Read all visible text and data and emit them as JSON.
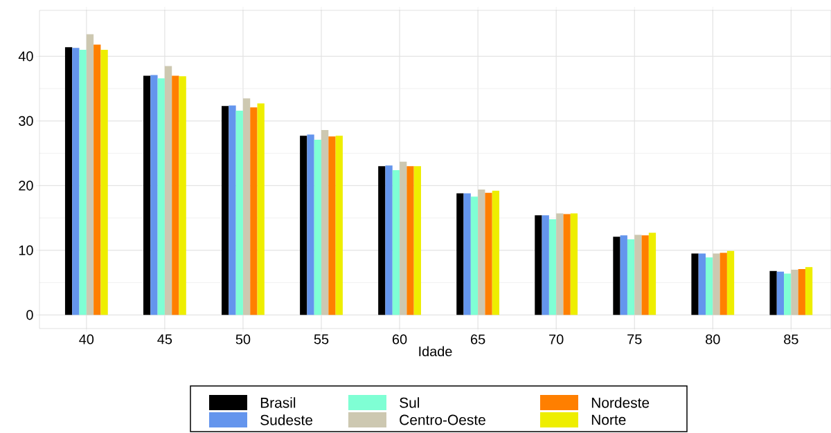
{
  "chart_data": {
    "type": "bar",
    "xlabel": "Idade",
    "categories": [
      "40",
      "45",
      "50",
      "55",
      "60",
      "65",
      "70",
      "75",
      "80",
      "85"
    ],
    "series": [
      {
        "name": "Brasil",
        "color": "#000000",
        "values": [
          41.4,
          37.0,
          32.3,
          27.7,
          23.0,
          18.8,
          15.4,
          12.1,
          9.5,
          6.8
        ]
      },
      {
        "name": "Sudeste",
        "color": "#6495ed",
        "values": [
          41.3,
          37.1,
          32.4,
          27.9,
          23.1,
          18.8,
          15.4,
          12.3,
          9.5,
          6.7
        ]
      },
      {
        "name": "Sul",
        "color": "#7fffd4",
        "values": [
          41.0,
          36.6,
          31.6,
          27.1,
          22.4,
          18.3,
          14.8,
          11.7,
          8.9,
          6.4
        ]
      },
      {
        "name": "Centro-Oeste",
        "color": "#cdc8b1",
        "values": [
          43.4,
          38.5,
          33.5,
          28.6,
          23.7,
          19.4,
          15.7,
          12.4,
          9.5,
          7.0
        ]
      },
      {
        "name": "Nordeste",
        "color": "#ff7f00",
        "values": [
          41.8,
          37.0,
          32.1,
          27.6,
          23.0,
          18.9,
          15.6,
          12.3,
          9.6,
          7.1
        ]
      },
      {
        "name": "Norte",
        "color": "#eeee00",
        "values": [
          41.0,
          36.9,
          32.7,
          27.7,
          23.0,
          19.2,
          15.7,
          12.7,
          9.9,
          7.4
        ]
      }
    ],
    "ylim": [
      -2.1,
      47.1
    ],
    "yticks": [
      0,
      10,
      20,
      30,
      40
    ],
    "grid": true,
    "legend": "bottom"
  }
}
